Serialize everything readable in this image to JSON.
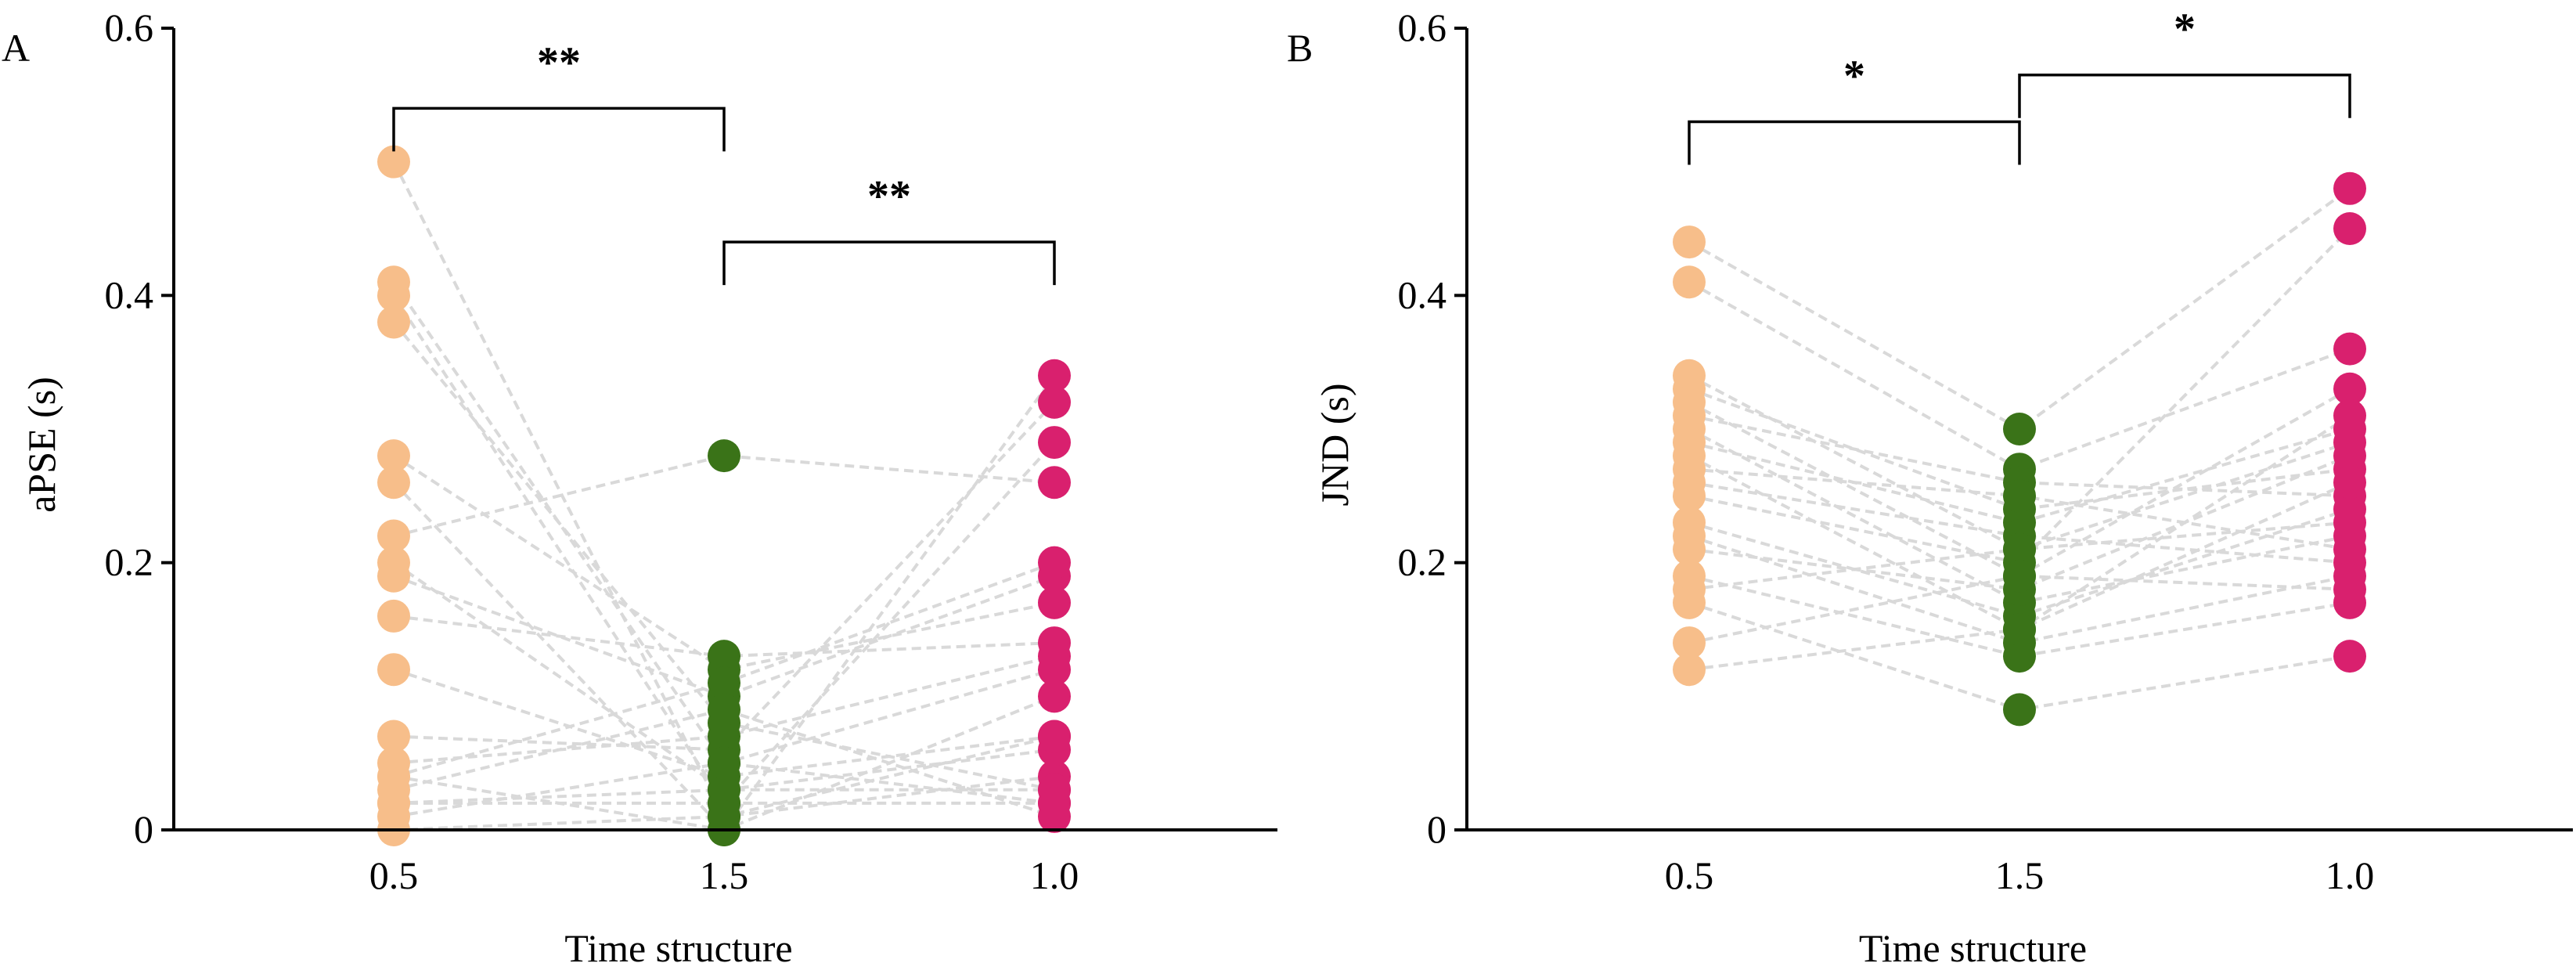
{
  "colors": {
    "c0.5": "#F7BE8A",
    "c1.5": "#3A7318",
    "c1.0": "#D9206E",
    "line": "#D9D9D9"
  },
  "chart_data": [
    {
      "type": "scatter",
      "panel_label": "A",
      "xlabel": "Time structure",
      "ylabel": "aPSE (s)",
      "categories": [
        "0.5",
        "1.5",
        "1.0"
      ],
      "ylim": [
        0,
        0.6
      ],
      "yticks": [
        "0",
        "0.2",
        "0.4",
        "0.6"
      ],
      "paired_lines": true,
      "series": [
        {
          "name": "0.5",
          "values": [
            0.5,
            0.41,
            0.4,
            0.38,
            0.28,
            0.26,
            0.22,
            0.2,
            0.19,
            0.16,
            0.12,
            0.07,
            0.05,
            0.04,
            0.04,
            0.03,
            0.02,
            0.02,
            0.01,
            0.0
          ]
        },
        {
          "name": "1.5",
          "values": [
            0.01,
            0.05,
            0.02,
            0.08,
            0.12,
            0.0,
            0.28,
            0.03,
            0.1,
            0.13,
            0.04,
            0.06,
            0.07,
            0.11,
            0.0,
            0.09,
            0.02,
            0.03,
            0.05,
            0.01
          ]
        },
        {
          "name": "1.0",
          "values": [
            0.04,
            0.12,
            0.02,
            0.03,
            0.17,
            0.1,
            0.26,
            0.06,
            0.19,
            0.14,
            0.07,
            0.32,
            0.13,
            0.2,
            0.34,
            0.01,
            0.29,
            0.03,
            0.02,
            0.07
          ]
        }
      ],
      "significance": [
        {
          "from": "0.5",
          "to": "1.5",
          "label": "**",
          "y": 0.54
        },
        {
          "from": "1.5",
          "to": "1.0",
          "label": "**",
          "y": 0.44
        }
      ]
    },
    {
      "type": "scatter",
      "panel_label": "B",
      "xlabel": "Time structure",
      "ylabel": "JND (s)",
      "categories": [
        "0.5",
        "1.5",
        "1.0"
      ],
      "ylim": [
        0,
        0.6
      ],
      "yticks": [
        "0",
        "0.2",
        "0.4",
        "0.6"
      ],
      "paired_lines": true,
      "series": [
        {
          "name": "0.5",
          "values": [
            0.44,
            0.41,
            0.34,
            0.33,
            0.32,
            0.31,
            0.3,
            0.29,
            0.28,
            0.26,
            0.25,
            0.23,
            0.22,
            0.21,
            0.19,
            0.18,
            0.17,
            0.14,
            0.12,
            0.27
          ]
        },
        {
          "name": "1.5",
          "values": [
            0.3,
            0.27,
            0.21,
            0.24,
            0.19,
            0.26,
            0.17,
            0.23,
            0.15,
            0.22,
            0.2,
            0.16,
            0.14,
            0.18,
            0.13,
            0.21,
            0.09,
            0.19,
            0.15,
            0.25
          ]
        },
        {
          "name": "1.0",
          "values": [
            0.48,
            0.36,
            0.29,
            0.27,
            0.33,
            0.25,
            0.22,
            0.3,
            0.31,
            0.2,
            0.45,
            0.24,
            0.19,
            0.28,
            0.17,
            0.23,
            0.13,
            0.18,
            0.26,
            0.21
          ]
        }
      ],
      "significance": [
        {
          "from": "0.5",
          "to": "1.5",
          "label": "*",
          "y": 0.53
        },
        {
          "from": "1.5",
          "to": "1.0",
          "label": "*",
          "y": 0.565
        }
      ]
    }
  ]
}
